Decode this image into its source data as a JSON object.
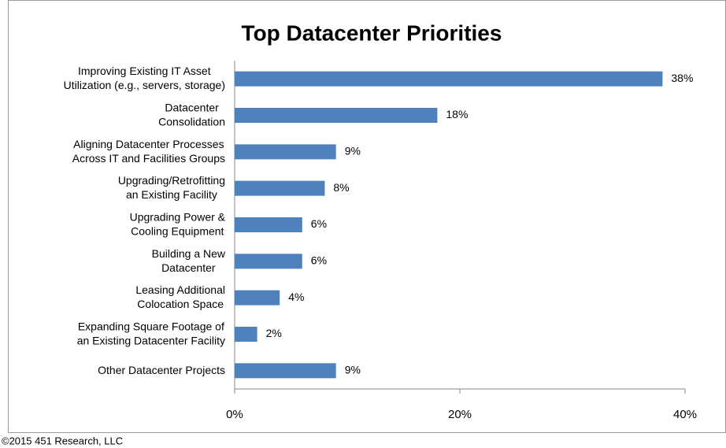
{
  "chart_data": {
    "type": "bar",
    "orientation": "horizontal",
    "title": "Top Datacenter Priorities",
    "categories": [
      "Improving Existing IT Asset\nUtilization (e.g., servers, storage)",
      "Datacenter\nConsolidation",
      "Aligning Datacenter Processes\nAcross IT and Facilities Groups",
      "Upgrading/Retrofitting\nan Existing Facility",
      "Upgrading Power &\nCooling Equipment",
      "Building a New\nDatacenter",
      "Leasing Additional\nColocation Space",
      "Expanding Square Footage of\nan Existing Datacenter Facility",
      "Other Datacenter Projects"
    ],
    "values": [
      38,
      18,
      9,
      8,
      6,
      6,
      4,
      2,
      9
    ],
    "value_labels": [
      "38%",
      "18%",
      "9%",
      "8%",
      "6%",
      "6%",
      "4%",
      "2%",
      "9%"
    ],
    "color": "#4f81bd",
    "xlim": [
      0,
      40
    ],
    "xticks": [
      {
        "value": 0,
        "label": "0%"
      },
      {
        "value": 20,
        "label": "20%"
      },
      {
        "value": 40,
        "label": "40%"
      }
    ],
    "footer": "©2015 451 Research, LLC"
  }
}
